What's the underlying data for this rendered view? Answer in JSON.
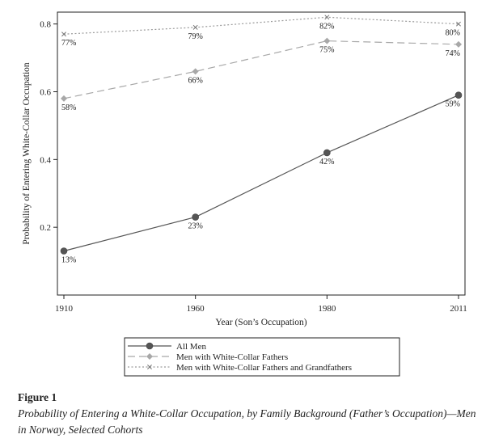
{
  "chart_data": {
    "type": "line",
    "title": "",
    "xlabel": "Year (Son’s Occupation)",
    "ylabel": "Probability of Entering White-Collar Occupation",
    "categories": [
      "1910",
      "1960",
      "1980",
      "2011"
    ],
    "y_ticks": [
      "0.2",
      "0.4",
      "0.6",
      "0.8"
    ],
    "ylim": [
      0.0,
      0.835
    ],
    "grid": false,
    "legend_position": "bottom",
    "series": [
      {
        "name": "All Men",
        "values": [
          0.13,
          0.23,
          0.42,
          0.59
        ],
        "labels": [
          "13%",
          "23%",
          "42%",
          "59%"
        ],
        "color": "#555555",
        "dash": "solid",
        "marker": "circle",
        "label_side": "below"
      },
      {
        "name": "Men with White-Collar Fathers",
        "values": [
          0.58,
          0.66,
          0.75,
          0.74
        ],
        "labels": [
          "58%",
          "66%",
          "75%",
          "74%"
        ],
        "color": "#a8a8a8",
        "dash": "long-dash",
        "marker": "diamond",
        "label_side": "below"
      },
      {
        "name": "Men with White-Collar Fathers and Grandfathers",
        "values": [
          0.77,
          0.79,
          0.82,
          0.8
        ],
        "labels": [
          "77%",
          "79%",
          "82%",
          "80%"
        ],
        "color": "#9a9a9a",
        "dash": "dotted",
        "marker": "x",
        "label_side": "below"
      }
    ]
  },
  "caption": {
    "figure_number": "Figure 1",
    "title": "Probability of Entering a White-Collar Occupation, by Family Background (Father’s Occupation)—Men in Norway, Selected Cohorts"
  }
}
